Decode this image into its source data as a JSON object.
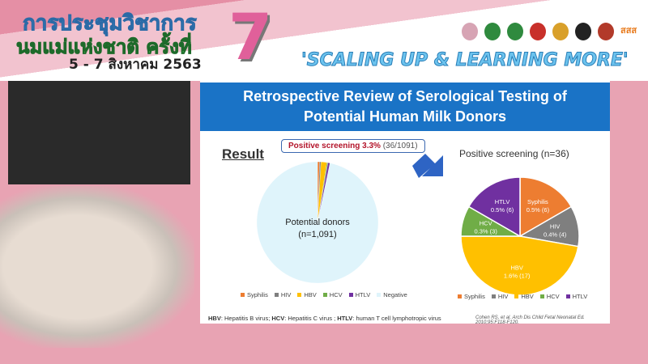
{
  "header": {
    "line1": "การประชุมวิชาการ",
    "line2": "นมแม่แห่งชาติ ครั้งที่",
    "date": "5 - 7 สิงหาคม 2563",
    "number": "7",
    "slogan": "'SCALING UP & LEARNING MORE'",
    "logo_text": "สสส"
  },
  "slide": {
    "title_line1": "Retrospective Review of Serological Testing of",
    "title_line2": "Potential Human Milk Donors",
    "result_heading": "Result",
    "callout_bold": "Positive screening 3.3%",
    "callout_rest": " (36/1091)",
    "donors_label": "Potential donors",
    "donors_n": "(n=1,091)",
    "pie_title": "Positive screening (n=36)",
    "footnote": {
      "hbv": "HBV",
      "hbv_t": ": Hepatitis B virus; ",
      "hcv": "HCV",
      "hcv_t": ": Hepatitis C virus ; ",
      "htlv": "HTLV",
      "htlv_t": ": human T cell lymphotropic virus"
    },
    "citation": "Cohen RS, et al. Arch Dis Child Fetal Neonatal Ed. 2010;95:F118-F120."
  },
  "chart_data": [
    {
      "type": "pie",
      "title": "",
      "center_label": "Potential donors (n=1,091)",
      "categories": [
        "Syphilis",
        "HIV",
        "HBV",
        "HCV",
        "HTLV",
        "Negative"
      ],
      "values": [
        6,
        4,
        17,
        3,
        6,
        1055
      ],
      "colors": [
        "#ed7d31",
        "#7f7f7f",
        "#ffc000",
        "#70ad47",
        "#7030a0",
        "#dff4fb"
      ]
    },
    {
      "type": "pie",
      "title": "Positive screening (n=36)",
      "categories": [
        "Syphilis",
        "HIV",
        "HBV",
        "HCV",
        "HTLV"
      ],
      "values": [
        6,
        4,
        17,
        3,
        6
      ],
      "labels": [
        "0.5% (6)",
        "0.4% (4)",
        "1.6% (17)",
        "0.3% (3)",
        "0.5% (6)"
      ],
      "colors": [
        "#ed7d31",
        "#7f7f7f",
        "#ffc000",
        "#70ad47",
        "#7030a0"
      ]
    }
  ]
}
